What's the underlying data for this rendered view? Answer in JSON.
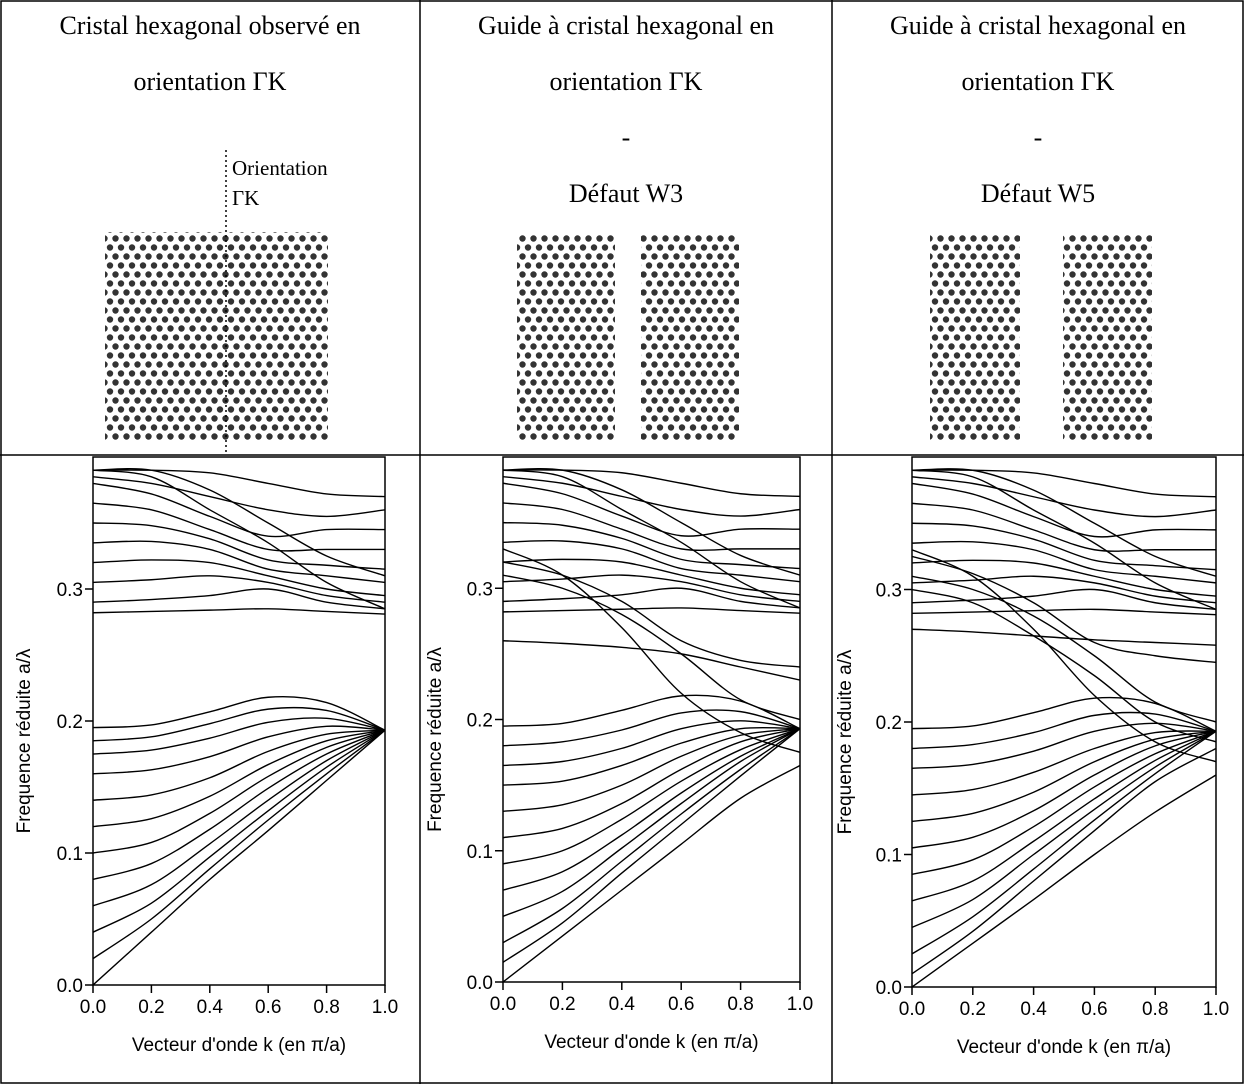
{
  "cells": [
    {
      "title_lines": [
        "Cristal hexagonal observé en",
        "orientation ΓK"
      ],
      "annotation": [
        "Orientation",
        "ΓK"
      ]
    },
    {
      "title_lines": [
        "Guide à cristal hexagonal en",
        "orientation ΓK",
        "-",
        "Défaut W3"
      ]
    },
    {
      "title_lines": [
        "Guide à cristal hexagonal en",
        "orientation ΓK",
        "-",
        "Défaut W5"
      ]
    }
  ],
  "chart_data": [
    {
      "type": "line",
      "xlabel": "Vecteur d'onde k (en π/a)",
      "ylabel": "Frequence réduite a/λ",
      "color": "#000000",
      "xlim": [
        0,
        1
      ],
      "ylim": [
        0,
        0.4
      ],
      "xticks": [
        {
          "value": 0,
          "label": "0.0"
        },
        0.2,
        0.4,
        0.6,
        0.8,
        {
          "value": 1,
          "label": "1.0"
        }
      ],
      "yticks": [
        {
          "value": 0,
          "label": "0.0"
        },
        0.1,
        0.2,
        0.3
      ],
      "x": [
        0,
        0.2,
        0.4,
        0.6,
        0.8,
        1
      ],
      "series": [
        {
          "values": [
            0,
            0.04,
            0.08,
            0.117,
            0.155,
            0.193
          ]
        },
        {
          "values": [
            0.02,
            0.05,
            0.088,
            0.125,
            0.16,
            0.193
          ]
        },
        {
          "values": [
            0.04,
            0.062,
            0.097,
            0.132,
            0.165,
            0.193
          ]
        },
        {
          "values": [
            0.06,
            0.076,
            0.107,
            0.14,
            0.17,
            0.193
          ]
        },
        {
          "values": [
            0.08,
            0.092,
            0.118,
            0.149,
            0.175,
            0.193
          ]
        },
        {
          "values": [
            0.1,
            0.108,
            0.13,
            0.158,
            0.18,
            0.193
          ]
        },
        {
          "values": [
            0.12,
            0.126,
            0.143,
            0.167,
            0.185,
            0.193
          ]
        },
        {
          "values": [
            0.14,
            0.144,
            0.157,
            0.177,
            0.19,
            0.193
          ]
        },
        {
          "values": [
            0.16,
            0.163,
            0.173,
            0.188,
            0.196,
            0.193
          ]
        },
        {
          "values": [
            0.175,
            0.178,
            0.187,
            0.199,
            0.202,
            0.193
          ]
        },
        {
          "values": [
            0.185,
            0.188,
            0.198,
            0.209,
            0.208,
            0.193
          ]
        },
        {
          "values": [
            0.195,
            0.197,
            0.207,
            0.218,
            0.214,
            0.193
          ]
        },
        {
          "values": [
            0.282,
            0.283,
            0.284,
            0.285,
            0.283,
            0.281
          ]
        },
        {
          "values": [
            0.29,
            0.292,
            0.295,
            0.3,
            0.29,
            0.285
          ]
        },
        {
          "values": [
            0.305,
            0.307,
            0.31,
            0.305,
            0.295,
            0.29
          ]
        },
        {
          "values": [
            0.32,
            0.322,
            0.32,
            0.31,
            0.3,
            0.295
          ]
        },
        {
          "values": [
            0.335,
            0.336,
            0.33,
            0.315,
            0.31,
            0.305
          ]
        },
        {
          "values": [
            0.35,
            0.348,
            0.338,
            0.322,
            0.318,
            0.315
          ]
        },
        {
          "values": [
            0.365,
            0.36,
            0.345,
            0.33,
            0.33,
            0.33
          ]
        },
        {
          "values": [
            0.38,
            0.372,
            0.355,
            0.34,
            0.345,
            0.345
          ]
        },
        {
          "values": [
            0.39,
            0.385,
            0.36,
            0.335,
            0.305,
            0.285
          ]
        },
        {
          "values": [
            0.39,
            0.39,
            0.375,
            0.35,
            0.325,
            0.31
          ]
        },
        {
          "values": [
            0.39,
            0.39,
            0.388,
            0.38,
            0.372,
            0.37
          ]
        },
        {
          "values": [
            0.385,
            0.38,
            0.37,
            0.36,
            0.355,
            0.36
          ]
        }
      ]
    },
    {
      "type": "line",
      "xlabel": "Vecteur d'onde k (en π/a)",
      "ylabel": "Frequence réduite a/λ",
      "color": "#000000",
      "xlim": [
        0,
        1
      ],
      "ylim": [
        0,
        0.4
      ],
      "xticks": [
        {
          "value": 0,
          "label": "0.0"
        },
        0.2,
        0.4,
        0.6,
        0.8,
        {
          "value": 1,
          "label": "1.0"
        }
      ],
      "yticks": [
        {
          "value": 0,
          "label": "0.0"
        },
        0.1,
        0.2,
        0.3
      ],
      "x": [
        0,
        0.2,
        0.4,
        0.6,
        0.8,
        1
      ],
      "series": [
        {
          "values": [
            0,
            0.035,
            0.07,
            0.105,
            0.14,
            0.165
          ]
        },
        {
          "values": [
            0.015,
            0.045,
            0.083,
            0.12,
            0.157,
            0.193
          ]
        },
        {
          "values": [
            0.03,
            0.056,
            0.092,
            0.128,
            0.162,
            0.193
          ]
        },
        {
          "values": [
            0.05,
            0.069,
            0.102,
            0.136,
            0.168,
            0.193
          ]
        },
        {
          "values": [
            0.07,
            0.084,
            0.112,
            0.144,
            0.172,
            0.193
          ]
        },
        {
          "values": [
            0.09,
            0.1,
            0.124,
            0.153,
            0.177,
            0.193
          ]
        },
        {
          "values": [
            0.11,
            0.117,
            0.136,
            0.162,
            0.183,
            0.193
          ]
        },
        {
          "values": [
            0.13,
            0.135,
            0.15,
            0.172,
            0.188,
            0.193
          ]
        },
        {
          "values": [
            0.15,
            0.153,
            0.165,
            0.182,
            0.193,
            0.193
          ]
        },
        {
          "values": [
            0.165,
            0.168,
            0.178,
            0.193,
            0.199,
            0.193
          ]
        },
        {
          "values": [
            0.18,
            0.183,
            0.192,
            0.205,
            0.206,
            0.193
          ]
        },
        {
          "values": [
            0.195,
            0.197,
            0.207,
            0.218,
            0.214,
            0.193
          ]
        },
        {
          "values": [
            0.282,
            0.283,
            0.284,
            0.285,
            0.283,
            0.281
          ]
        },
        {
          "values": [
            0.29,
            0.292,
            0.295,
            0.3,
            0.29,
            0.285
          ]
        },
        {
          "values": [
            0.305,
            0.307,
            0.31,
            0.305,
            0.295,
            0.29
          ]
        },
        {
          "values": [
            0.32,
            0.322,
            0.32,
            0.31,
            0.3,
            0.295
          ]
        },
        {
          "values": [
            0.335,
            0.336,
            0.33,
            0.315,
            0.31,
            0.305
          ]
        },
        {
          "values": [
            0.35,
            0.348,
            0.338,
            0.322,
            0.318,
            0.315
          ]
        },
        {
          "values": [
            0.365,
            0.36,
            0.345,
            0.33,
            0.33,
            0.33
          ]
        },
        {
          "values": [
            0.38,
            0.372,
            0.355,
            0.34,
            0.345,
            0.345
          ]
        },
        {
          "values": [
            0.39,
            0.385,
            0.36,
            0.335,
            0.305,
            0.285
          ]
        },
        {
          "values": [
            0.39,
            0.39,
            0.375,
            0.35,
            0.325,
            0.31
          ]
        },
        {
          "values": [
            0.39,
            0.39,
            0.388,
            0.38,
            0.372,
            0.37
          ]
        },
        {
          "values": [
            0.385,
            0.38,
            0.37,
            0.36,
            0.355,
            0.36
          ]
        },
        {
          "values": [
            0.33,
            0.31,
            0.27,
            0.22,
            0.19,
            0.175
          ]
        },
        {
          "values": [
            0.32,
            0.31,
            0.29,
            0.26,
            0.245,
            0.24
          ]
        },
        {
          "values": [
            0.26,
            0.258,
            0.255,
            0.25,
            0.24,
            0.23
          ]
        },
        {
          "values": [
            0.31,
            0.3,
            0.28,
            0.25,
            0.215,
            0.2
          ]
        }
      ]
    },
    {
      "type": "line",
      "xlabel": "Vecteur d'onde k (en π/a)",
      "ylabel": "Frequence réduite a/λ",
      "color": "#000000",
      "xlim": [
        0,
        1
      ],
      "ylim": [
        0,
        0.4
      ],
      "xticks": [
        {
          "value": 0,
          "label": "0.0"
        },
        0.2,
        0.4,
        0.6,
        0.8,
        {
          "value": 1,
          "label": "1.0"
        }
      ],
      "yticks": [
        {
          "value": 0,
          "label": "0.0"
        },
        0.1,
        0.2,
        0.3
      ],
      "x": [
        0,
        0.2,
        0.4,
        0.6,
        0.8,
        1
      ],
      "series": [
        {
          "values": [
            0,
            0.033,
            0.066,
            0.1,
            0.132,
            0.16
          ]
        },
        {
          "values": [
            0.01,
            0.042,
            0.08,
            0.118,
            0.155,
            0.18
          ]
        },
        {
          "values": [
            0.025,
            0.053,
            0.089,
            0.126,
            0.161,
            0.193
          ]
        },
        {
          "values": [
            0.045,
            0.066,
            0.1,
            0.134,
            0.166,
            0.193
          ]
        },
        {
          "values": [
            0.065,
            0.08,
            0.11,
            0.142,
            0.171,
            0.193
          ]
        },
        {
          "values": [
            0.085,
            0.096,
            0.121,
            0.151,
            0.176,
            0.193
          ]
        },
        {
          "values": [
            0.105,
            0.113,
            0.133,
            0.16,
            0.182,
            0.193
          ]
        },
        {
          "values": [
            0.125,
            0.131,
            0.147,
            0.17,
            0.187,
            0.193
          ]
        },
        {
          "values": [
            0.145,
            0.149,
            0.162,
            0.18,
            0.192,
            0.193
          ]
        },
        {
          "values": [
            0.165,
            0.168,
            0.178,
            0.193,
            0.199,
            0.193
          ]
        },
        {
          "values": [
            0.18,
            0.183,
            0.192,
            0.205,
            0.206,
            0.193
          ]
        },
        {
          "values": [
            0.195,
            0.197,
            0.207,
            0.218,
            0.214,
            0.193
          ]
        },
        {
          "values": [
            0.282,
            0.283,
            0.284,
            0.285,
            0.283,
            0.281
          ]
        },
        {
          "values": [
            0.29,
            0.292,
            0.295,
            0.3,
            0.29,
            0.285
          ]
        },
        {
          "values": [
            0.305,
            0.307,
            0.31,
            0.305,
            0.295,
            0.29
          ]
        },
        {
          "values": [
            0.32,
            0.322,
            0.32,
            0.31,
            0.3,
            0.295
          ]
        },
        {
          "values": [
            0.335,
            0.336,
            0.33,
            0.315,
            0.31,
            0.305
          ]
        },
        {
          "values": [
            0.35,
            0.348,
            0.338,
            0.322,
            0.318,
            0.315
          ]
        },
        {
          "values": [
            0.365,
            0.36,
            0.345,
            0.33,
            0.33,
            0.33
          ]
        },
        {
          "values": [
            0.38,
            0.372,
            0.355,
            0.34,
            0.345,
            0.345
          ]
        },
        {
          "values": [
            0.39,
            0.385,
            0.36,
            0.335,
            0.305,
            0.285
          ]
        },
        {
          "values": [
            0.39,
            0.39,
            0.375,
            0.35,
            0.325,
            0.31
          ]
        },
        {
          "values": [
            0.39,
            0.39,
            0.388,
            0.38,
            0.372,
            0.37
          ]
        },
        {
          "values": [
            0.385,
            0.38,
            0.37,
            0.36,
            0.355,
            0.36
          ]
        },
        {
          "values": [
            0.33,
            0.31,
            0.27,
            0.22,
            0.185,
            0.17
          ]
        },
        {
          "values": [
            0.325,
            0.312,
            0.29,
            0.26,
            0.25,
            0.245
          ]
        },
        {
          "values": [
            0.27,
            0.268,
            0.265,
            0.262,
            0.26,
            0.258
          ]
        },
        {
          "values": [
            0.31,
            0.3,
            0.28,
            0.25,
            0.215,
            0.2
          ]
        },
        {
          "values": [
            0.3,
            0.29,
            0.265,
            0.235,
            0.2,
            0.185
          ]
        }
      ]
    }
  ]
}
